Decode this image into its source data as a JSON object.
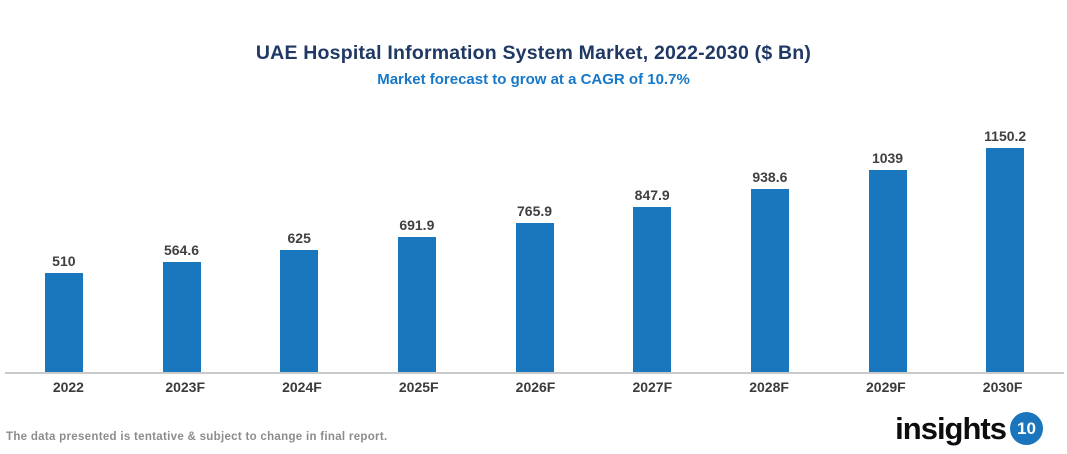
{
  "header": {
    "title": "UAE Hospital Information System Market, 2022-2030 ($ Bn)",
    "subtitle": "Market forecast to grow at a CAGR of 10.7%"
  },
  "chart_data": {
    "type": "bar",
    "categories": [
      "2022",
      "2023F",
      "2024F",
      "2025F",
      "2026F",
      "2027F",
      "2028F",
      "2029F",
      "2030F"
    ],
    "values": [
      510,
      564.6,
      625,
      691.9,
      765.9,
      847.9,
      938.6,
      1039,
      1150.2
    ],
    "value_labels": [
      "510",
      "564.6",
      "625",
      "691.9",
      "765.9",
      "847.9",
      "938.6",
      "1039",
      "1150.2"
    ],
    "title": "UAE Hospital Information System Market, 2022-2030 ($ Bn)",
    "subtitle": "Market forecast to grow at a CAGR of 10.7%",
    "xlabel": "",
    "ylabel": "",
    "ylim": [
      0,
      1180
    ],
    "grid": false,
    "legend": false,
    "bar_color": "#1877BD"
  },
  "footer": {
    "disclaimer": "The data presented is tentative & subject to change in final report.",
    "logo_text": "insights",
    "logo_badge": "10"
  },
  "colors": {
    "title": "#1F3864",
    "subtitle": "#1778C8",
    "bar": "#1877BD",
    "axis_line": "#C9C9C9",
    "value_label": "#404040",
    "category_label": "#3B3B3B",
    "disclaimer": "#8C8C8C",
    "logo_badge_bg": "#1B75BC"
  }
}
